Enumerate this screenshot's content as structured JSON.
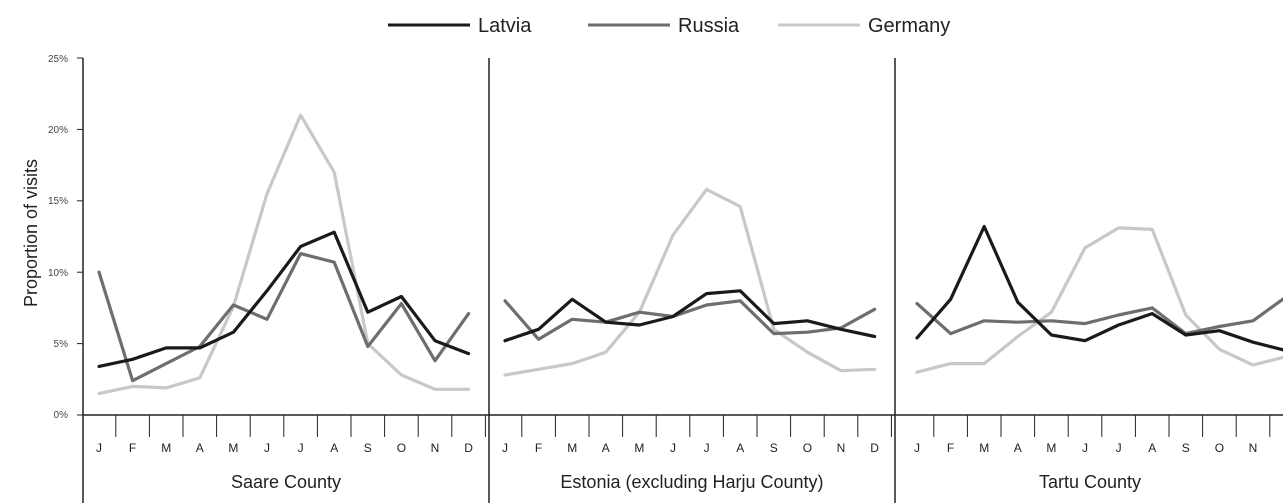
{
  "chart_data": {
    "type": "line",
    "ylabel": "Proportion of visits",
    "ylim": [
      0,
      25
    ],
    "yticks": [
      "0%",
      "5%",
      "10%",
      "15%",
      "20%",
      "25%"
    ],
    "months": [
      "J",
      "F",
      "M",
      "A",
      "M",
      "J",
      "J",
      "A",
      "S",
      "O",
      "N",
      "D"
    ],
    "legend": {
      "placement": "top-center",
      "entries": [
        {
          "name": "Latvia",
          "color": "#1a1a1a"
        },
        {
          "name": "Russia",
          "color": "#6e6e6e"
        },
        {
          "name": "Germany",
          "color": "#c8c8c8"
        }
      ]
    },
    "panels": [
      {
        "title": "Saare County",
        "series": [
          {
            "name": "Latvia",
            "values": [
              3.4,
              3.9,
              4.7,
              4.7,
              5.8,
              8.7,
              11.8,
              12.8,
              7.2,
              8.3,
              5.2,
              4.3
            ]
          },
          {
            "name": "Russia",
            "values": [
              10.0,
              2.4,
              3.6,
              4.8,
              7.7,
              6.7,
              11.3,
              10.7,
              4.8,
              7.8,
              3.8,
              7.1
            ]
          },
          {
            "name": "Germany",
            "values": [
              1.5,
              2.0,
              1.9,
              2.6,
              7.6,
              15.5,
              21.0,
              17.0,
              5.0,
              2.8,
              1.8,
              1.8
            ]
          }
        ]
      },
      {
        "title": "Estonia (excluding Harju County)",
        "series": [
          {
            "name": "Latvia",
            "values": [
              5.2,
              6.0,
              8.1,
              6.5,
              6.3,
              6.9,
              8.5,
              8.7,
              6.4,
              6.6,
              6.0,
              5.5
            ]
          },
          {
            "name": "Russia",
            "values": [
              8.0,
              5.3,
              6.7,
              6.5,
              7.2,
              6.9,
              7.7,
              8.0,
              5.7,
              5.8,
              6.1,
              7.4
            ]
          },
          {
            "name": "Germany",
            "values": [
              2.8,
              3.2,
              3.6,
              4.4,
              7.2,
              12.6,
              15.8,
              14.6,
              6.0,
              4.4,
              3.1,
              3.2
            ]
          }
        ]
      },
      {
        "title": "Tartu County",
        "series": [
          {
            "name": "Latvia",
            "values": [
              5.4,
              8.1,
              13.2,
              7.9,
              5.6,
              5.2,
              6.3,
              7.1,
              5.6,
              5.9,
              5.1,
              4.5
            ]
          },
          {
            "name": "Russia",
            "values": [
              7.8,
              5.7,
              6.6,
              6.5,
              6.6,
              6.4,
              7.0,
              7.5,
              5.7,
              6.2,
              6.6,
              8.3
            ]
          },
          {
            "name": "Germany",
            "values": [
              3.0,
              3.6,
              3.6,
              5.5,
              7.2,
              11.7,
              13.1,
              13.0,
              7.0,
              4.6,
              3.5,
              4.1
            ]
          }
        ]
      }
    ]
  }
}
